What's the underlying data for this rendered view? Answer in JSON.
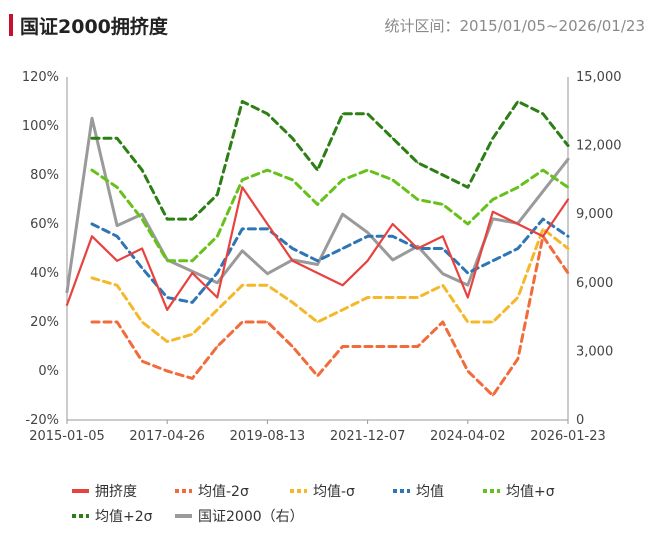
{
  "header": {
    "title": "国证2000拥挤度",
    "range_label": "统计区间：2015/01/05~2026/01/23"
  },
  "chart_data": {
    "type": "line",
    "title": "国证2000拥挤度",
    "x_ticks": [
      "2015-01-05",
      "2017-04-26",
      "2019-08-13",
      "2021-12-07",
      "2024-04-02",
      "2026-01-23"
    ],
    "y_left": {
      "min": -0.2,
      "max": 1.2,
      "ticks": [
        "-20%",
        "0%",
        "20%",
        "40%",
        "60%",
        "80%",
        "100%",
        "120%"
      ]
    },
    "y_right": {
      "min": 0,
      "max": 15000,
      "ticks": [
        "0",
        "3,000",
        "6,000",
        "9,000",
        "12,000",
        "15,000"
      ]
    },
    "grid": false,
    "legend_position": "bottom",
    "time_fraction": [
      0,
      0.05,
      0.1,
      0.15,
      0.2,
      0.25,
      0.3,
      0.35,
      0.4,
      0.45,
      0.5,
      0.55,
      0.6,
      0.65,
      0.7,
      0.75,
      0.8,
      0.85,
      0.9,
      0.95,
      1.0
    ],
    "series": [
      {
        "name": "拥挤度",
        "axis": "left",
        "color": "#e8423f",
        "style": "solid",
        "values": [
          0.27,
          0.55,
          0.45,
          0.5,
          0.25,
          0.4,
          0.3,
          0.75,
          0.6,
          0.45,
          0.4,
          0.35,
          0.45,
          0.6,
          0.5,
          0.55,
          0.3,
          0.65,
          0.6,
          0.55,
          0.7
        ]
      },
      {
        "name": "均值-2σ",
        "axis": "left",
        "color": "#f26b3a",
        "style": "dashed",
        "values": [
          null,
          0.2,
          0.2,
          0.04,
          0.0,
          -0.03,
          0.1,
          0.2,
          0.2,
          0.1,
          -0.02,
          0.1,
          0.1,
          0.1,
          0.1,
          0.2,
          0.0,
          -0.1,
          0.05,
          0.55,
          0.4
        ]
      },
      {
        "name": "均值-σ",
        "axis": "left",
        "color": "#f4b82a",
        "style": "dashed",
        "values": [
          null,
          0.38,
          0.35,
          0.2,
          0.12,
          0.15,
          0.25,
          0.35,
          0.35,
          0.28,
          0.2,
          0.25,
          0.3,
          0.3,
          0.3,
          0.35,
          0.2,
          0.2,
          0.3,
          0.58,
          0.5
        ]
      },
      {
        "name": "均值",
        "axis": "left",
        "color": "#2e75b6",
        "style": "dashed",
        "values": [
          null,
          0.6,
          0.55,
          0.42,
          0.3,
          0.28,
          0.4,
          0.58,
          0.58,
          0.5,
          0.45,
          0.5,
          0.55,
          0.55,
          0.5,
          0.5,
          0.4,
          0.45,
          0.5,
          0.62,
          0.55
        ]
      },
      {
        "name": "均值+σ",
        "axis": "left",
        "color": "#66c21a",
        "style": "dashed",
        "values": [
          null,
          0.82,
          0.75,
          0.62,
          0.45,
          0.45,
          0.55,
          0.78,
          0.82,
          0.78,
          0.68,
          0.78,
          0.82,
          0.78,
          0.7,
          0.68,
          0.6,
          0.7,
          0.75,
          0.82,
          0.75
        ]
      },
      {
        "name": "均值+2σ",
        "axis": "left",
        "color": "#2c7f15",
        "style": "dashed",
        "values": [
          null,
          0.95,
          0.95,
          0.82,
          0.62,
          0.62,
          0.72,
          1.1,
          1.05,
          0.95,
          0.82,
          1.05,
          1.05,
          0.95,
          0.85,
          0.8,
          0.75,
          0.95,
          1.1,
          1.05,
          0.92
        ]
      },
      {
        "name": "国证2000（右）",
        "axis": "right",
        "color": "#9a9a9a",
        "style": "solid",
        "values": [
          5600,
          13200,
          8500,
          9000,
          7000,
          6500,
          6000,
          7400,
          6400,
          7000,
          6800,
          9000,
          8200,
          7000,
          7600,
          6400,
          5900,
          8800,
          8600,
          10000,
          11400
        ]
      }
    ]
  },
  "legend": {
    "items": [
      {
        "label": "拥挤度",
        "color": "#e8423f",
        "style": "solid"
      },
      {
        "label": "均值-2σ",
        "color": "#f26b3a",
        "style": "dashed"
      },
      {
        "label": "均值-σ",
        "color": "#f4b82a",
        "style": "dashed"
      },
      {
        "label": "均值",
        "color": "#2e75b6",
        "style": "dashed"
      },
      {
        "label": "均值+σ",
        "color": "#66c21a",
        "style": "dashed"
      },
      {
        "label": "均值+2σ",
        "color": "#2c7f15",
        "style": "dashed"
      },
      {
        "label": "国证2000（右）",
        "color": "#9a9a9a",
        "style": "solid"
      }
    ]
  }
}
